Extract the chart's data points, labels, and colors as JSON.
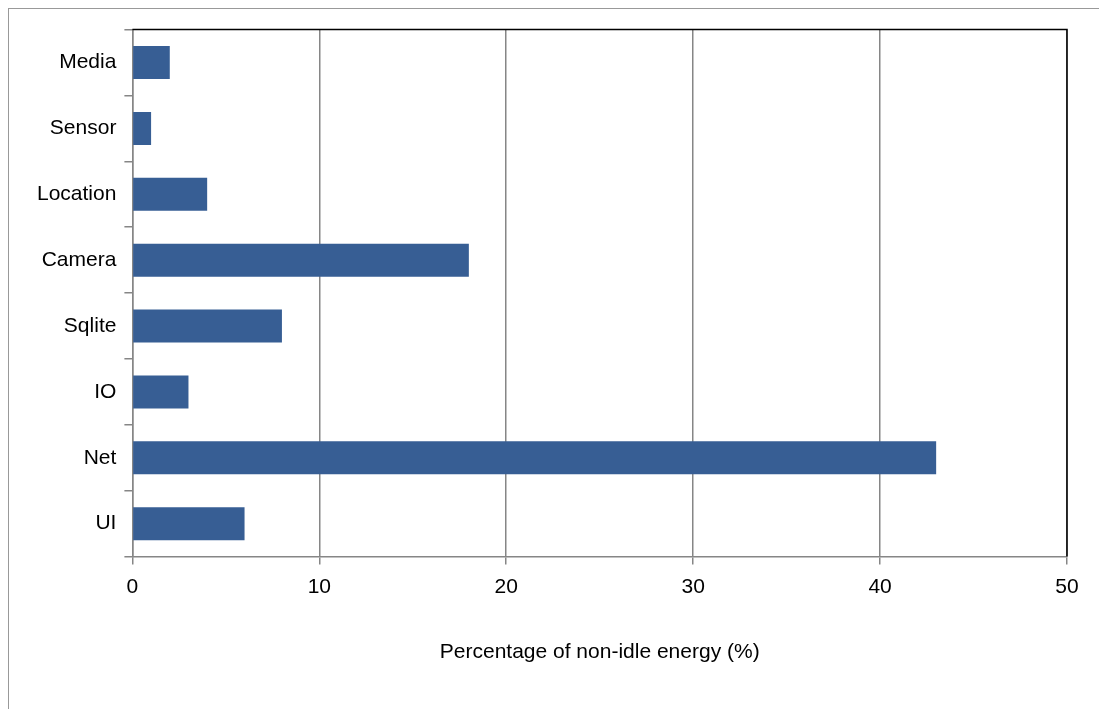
{
  "chart_data": {
    "type": "bar",
    "orientation": "horizontal",
    "xlabel": "Percentage of non-idle energy (%)",
    "categories": [
      "Media",
      "Sensor",
      "Location",
      "Camera",
      "Sqlite",
      "IO",
      "Net",
      "UI"
    ],
    "values": [
      2,
      1,
      4,
      18,
      8,
      3,
      43,
      6
    ],
    "color": "#375e94",
    "xlim": [
      0,
      50
    ],
    "xticks": [
      0,
      10,
      20,
      30,
      40,
      50
    ],
    "grid": "x",
    "legend": false
  }
}
